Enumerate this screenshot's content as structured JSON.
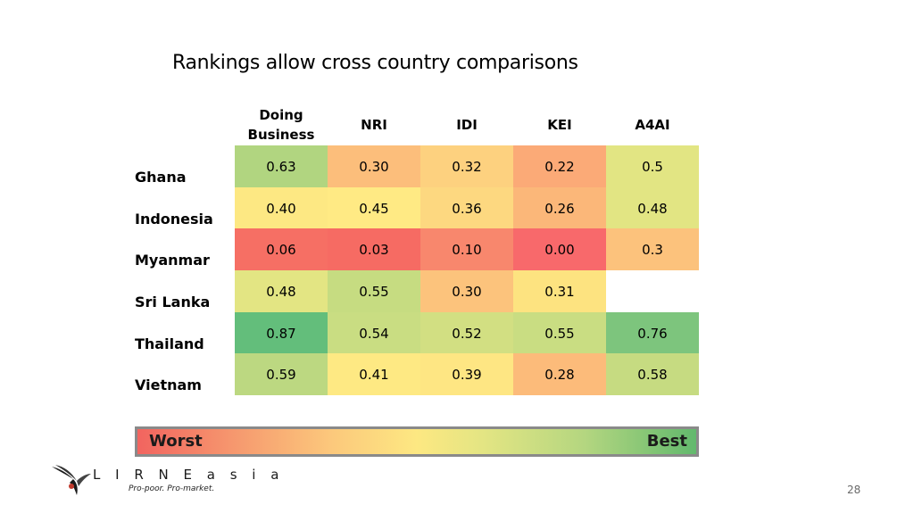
{
  "title": "Rankings allow cross country comparisons",
  "table": {
    "columns": [
      {
        "label_line1": "Doing",
        "label_line2": "Business"
      },
      {
        "label_line1": "NRI",
        "label_line2": ""
      },
      {
        "label_line1": "IDI",
        "label_line2": ""
      },
      {
        "label_line1": "KEI",
        "label_line2": ""
      },
      {
        "label_line1": "A4AI",
        "label_line2": ""
      }
    ],
    "rows": [
      {
        "country": "Ghana",
        "cells": [
          {
            "value": "0.63",
            "color": "#b1d580"
          },
          {
            "value": "0.30",
            "color": "#fcbe7b"
          },
          {
            "value": "0.32",
            "color": "#fdd17f"
          },
          {
            "value": "0.22",
            "color": "#fbaa77"
          },
          {
            "value": "0.5",
            "color": "#e2e583"
          }
        ]
      },
      {
        "country": "Indonesia",
        "cells": [
          {
            "value": "0.40",
            "color": "#fde883"
          },
          {
            "value": "0.45",
            "color": "#ffea84"
          },
          {
            "value": "0.36",
            "color": "#fdd880"
          },
          {
            "value": "0.26",
            "color": "#fbb779"
          },
          {
            "value": "0.48",
            "color": "#e2e583"
          }
        ]
      },
      {
        "country": "Myanmar",
        "cells": [
          {
            "value": "0.06",
            "color": "#f66f64"
          },
          {
            "value": "0.03",
            "color": "#f66b63"
          },
          {
            "value": "0.10",
            "color": "#f8876d"
          },
          {
            "value": "0.00",
            "color": "#f8696b"
          },
          {
            "value": "0.3",
            "color": "#fcc27c"
          }
        ]
      },
      {
        "country": "Sri Lanka",
        "cells": [
          {
            "value": "0.48",
            "color": "#e3e583"
          },
          {
            "value": "0.55",
            "color": "#c6dc81"
          },
          {
            "value": "0.30",
            "color": "#fcc37c"
          },
          {
            "value": "0.31",
            "color": "#fde380"
          },
          {
            "value": "",
            "color": "#ffffff"
          }
        ]
      },
      {
        "country": "Thailand",
        "cells": [
          {
            "value": "0.87",
            "color": "#63be7b"
          },
          {
            "value": "0.54",
            "color": "#c9dd82"
          },
          {
            "value": "0.52",
            "color": "#d2df82"
          },
          {
            "value": "0.55",
            "color": "#c9dd82"
          },
          {
            "value": "0.76",
            "color": "#7dc57d"
          }
        ]
      },
      {
        "country": "Vietnam",
        "cells": [
          {
            "value": "0.59",
            "color": "#bcd881"
          },
          {
            "value": "0.41",
            "color": "#fee983"
          },
          {
            "value": "0.39",
            "color": "#fee683"
          },
          {
            "value": "0.28",
            "color": "#fcbb7a"
          },
          {
            "value": "0.58",
            "color": "#c6db81"
          }
        ]
      }
    ]
  },
  "legend": {
    "worst": "Worst",
    "best": "Best"
  },
  "logo": {
    "name": "L I R N E a s i a",
    "tagline": "Pro-poor. Pro-market."
  },
  "page_number": "28"
}
